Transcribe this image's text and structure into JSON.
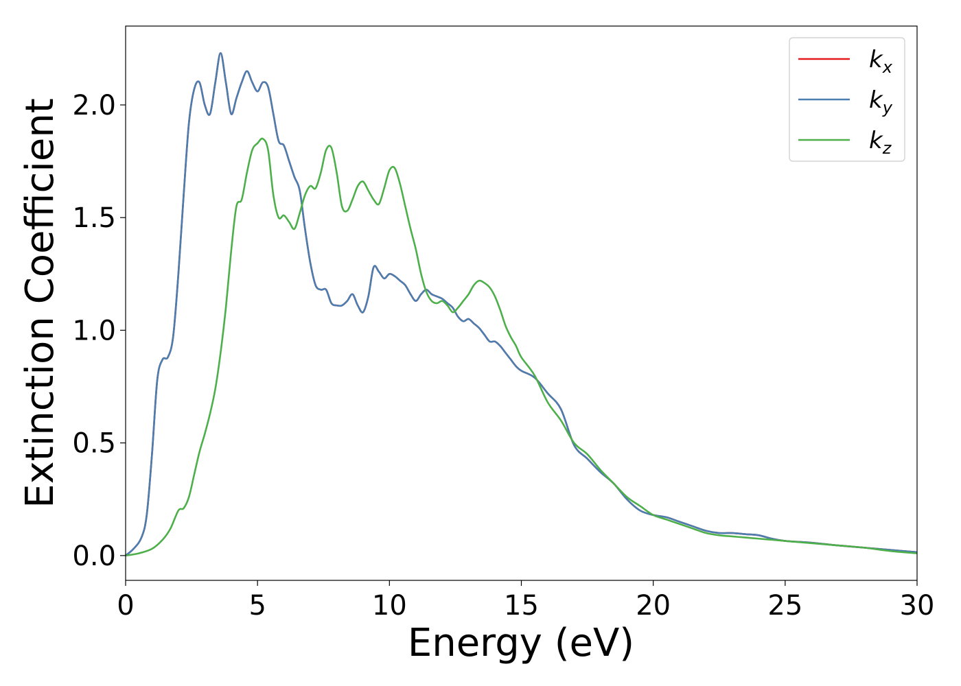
{
  "chart_data": {
    "type": "line",
    "title": "",
    "xlabel": "Energy (eV)",
    "ylabel": "Extinction Coefficient",
    "xlim": [
      0,
      30
    ],
    "ylim": [
      -0.11,
      2.35
    ],
    "xticks": [
      0,
      5,
      10,
      15,
      20,
      25,
      30
    ],
    "xtick_labels": [
      "0",
      "5",
      "10",
      "15",
      "20",
      "25",
      "30"
    ],
    "yticks": [
      0.0,
      0.5,
      1.0,
      1.5,
      2.0
    ],
    "ytick_labels": [
      "0.0",
      "0.5",
      "1.0",
      "1.5",
      "2.0"
    ],
    "grid": false,
    "legend_position": "top-right",
    "series": [
      {
        "name": "k_x",
        "legend_base": "k",
        "legend_sub": "x",
        "color": "#e41a1c",
        "x": [
          0,
          0.3,
          0.6,
          0.8,
          1.0,
          1.2,
          1.4,
          1.6,
          1.8,
          2.0,
          2.2,
          2.4,
          2.6,
          2.8,
          3.0,
          3.2,
          3.4,
          3.6,
          3.8,
          4.0,
          4.2,
          4.4,
          4.6,
          4.8,
          5.0,
          5.2,
          5.4,
          5.6,
          5.8,
          6.0,
          6.2,
          6.4,
          6.6,
          6.8,
          7.0,
          7.2,
          7.4,
          7.6,
          7.8,
          8.0,
          8.2,
          8.4,
          8.6,
          8.8,
          9.0,
          9.2,
          9.4,
          9.6,
          9.8,
          10.0,
          10.2,
          10.4,
          10.6,
          10.8,
          11.0,
          11.2,
          11.4,
          11.6,
          11.8,
          12.0,
          12.2,
          12.4,
          12.6,
          12.8,
          13.0,
          13.2,
          13.4,
          13.6,
          13.8,
          14.0,
          14.2,
          14.4,
          14.6,
          14.8,
          15.0,
          15.5,
          16.0,
          16.5,
          17.0,
          17.5,
          18.0,
          18.5,
          19.0,
          19.5,
          20.0,
          20.5,
          21.0,
          21.5,
          22.0,
          22.5,
          23.0,
          23.5,
          24.0,
          24.5,
          25.0,
          26.0,
          27.0,
          28.0,
          29.0,
          30.0
        ],
        "y": [
          0,
          0.03,
          0.08,
          0.18,
          0.45,
          0.78,
          0.87,
          0.88,
          0.97,
          1.25,
          1.6,
          1.92,
          2.07,
          2.1,
          2.0,
          1.96,
          2.1,
          2.23,
          2.1,
          1.96,
          2.03,
          2.1,
          2.15,
          2.1,
          2.06,
          2.1,
          2.08,
          1.96,
          1.84,
          1.82,
          1.75,
          1.68,
          1.62,
          1.45,
          1.3,
          1.2,
          1.18,
          1.18,
          1.12,
          1.11,
          1.11,
          1.13,
          1.16,
          1.11,
          1.08,
          1.15,
          1.28,
          1.26,
          1.23,
          1.25,
          1.24,
          1.22,
          1.2,
          1.16,
          1.13,
          1.16,
          1.18,
          1.16,
          1.15,
          1.14,
          1.12,
          1.1,
          1.06,
          1.04,
          1.05,
          1.03,
          1.01,
          0.98,
          0.95,
          0.95,
          0.93,
          0.9,
          0.87,
          0.84,
          0.82,
          0.79,
          0.72,
          0.65,
          0.49,
          0.43,
          0.37,
          0.32,
          0.25,
          0.2,
          0.18,
          0.17,
          0.15,
          0.13,
          0.11,
          0.1,
          0.1,
          0.095,
          0.09,
          0.075,
          0.065,
          0.057,
          0.045,
          0.035,
          0.025,
          0.015
        ]
      },
      {
        "name": "k_y",
        "legend_base": "k",
        "legend_sub": "y",
        "color": "#4a7eb0",
        "x": [
          0,
          0.3,
          0.6,
          0.8,
          1.0,
          1.2,
          1.4,
          1.6,
          1.8,
          2.0,
          2.2,
          2.4,
          2.6,
          2.8,
          3.0,
          3.2,
          3.4,
          3.6,
          3.8,
          4.0,
          4.2,
          4.4,
          4.6,
          4.8,
          5.0,
          5.2,
          5.4,
          5.6,
          5.8,
          6.0,
          6.2,
          6.4,
          6.6,
          6.8,
          7.0,
          7.2,
          7.4,
          7.6,
          7.8,
          8.0,
          8.2,
          8.4,
          8.6,
          8.8,
          9.0,
          9.2,
          9.4,
          9.6,
          9.8,
          10.0,
          10.2,
          10.4,
          10.6,
          10.8,
          11.0,
          11.2,
          11.4,
          11.6,
          11.8,
          12.0,
          12.2,
          12.4,
          12.6,
          12.8,
          13.0,
          13.2,
          13.4,
          13.6,
          13.8,
          14.0,
          14.2,
          14.4,
          14.6,
          14.8,
          15.0,
          15.5,
          16.0,
          16.5,
          17.0,
          17.5,
          18.0,
          18.5,
          19.0,
          19.5,
          20.0,
          20.5,
          21.0,
          21.5,
          22.0,
          22.5,
          23.0,
          23.5,
          24.0,
          24.5,
          25.0,
          26.0,
          27.0,
          28.0,
          29.0,
          30.0
        ],
        "y": [
          0,
          0.03,
          0.08,
          0.18,
          0.45,
          0.78,
          0.87,
          0.88,
          0.97,
          1.25,
          1.6,
          1.92,
          2.07,
          2.1,
          2.0,
          1.96,
          2.1,
          2.23,
          2.1,
          1.96,
          2.03,
          2.1,
          2.15,
          2.1,
          2.06,
          2.1,
          2.08,
          1.96,
          1.84,
          1.82,
          1.75,
          1.68,
          1.62,
          1.45,
          1.3,
          1.2,
          1.18,
          1.18,
          1.12,
          1.11,
          1.11,
          1.13,
          1.16,
          1.11,
          1.08,
          1.15,
          1.28,
          1.26,
          1.23,
          1.25,
          1.24,
          1.22,
          1.2,
          1.16,
          1.13,
          1.16,
          1.18,
          1.16,
          1.15,
          1.14,
          1.12,
          1.1,
          1.06,
          1.04,
          1.05,
          1.03,
          1.01,
          0.98,
          0.95,
          0.95,
          0.93,
          0.9,
          0.87,
          0.84,
          0.82,
          0.79,
          0.72,
          0.65,
          0.49,
          0.43,
          0.37,
          0.32,
          0.25,
          0.2,
          0.18,
          0.17,
          0.15,
          0.13,
          0.11,
          0.1,
          0.1,
          0.095,
          0.09,
          0.075,
          0.065,
          0.057,
          0.045,
          0.035,
          0.025,
          0.015
        ]
      },
      {
        "name": "k_z",
        "legend_base": "k",
        "legend_sub": "z",
        "color": "#4daf4a",
        "x": [
          0,
          0.5,
          1.0,
          1.4,
          1.7,
          2.0,
          2.2,
          2.4,
          2.6,
          2.8,
          3.0,
          3.2,
          3.4,
          3.6,
          3.8,
          4.0,
          4.2,
          4.4,
          4.6,
          4.8,
          5.0,
          5.2,
          5.4,
          5.6,
          5.8,
          6.0,
          6.2,
          6.4,
          6.6,
          6.8,
          7.0,
          7.2,
          7.4,
          7.6,
          7.8,
          8.0,
          8.2,
          8.4,
          8.6,
          8.8,
          9.0,
          9.2,
          9.4,
          9.6,
          9.8,
          10.0,
          10.2,
          10.4,
          10.6,
          10.8,
          11.0,
          11.2,
          11.4,
          11.6,
          11.8,
          12.0,
          12.2,
          12.4,
          12.6,
          12.8,
          13.0,
          13.2,
          13.4,
          13.6,
          13.8,
          14.0,
          14.2,
          14.4,
          14.6,
          14.8,
          15.0,
          15.5,
          16.0,
          16.5,
          17.0,
          17.5,
          18.0,
          18.5,
          19.0,
          19.5,
          20.0,
          20.5,
          21.0,
          21.5,
          22.0,
          22.5,
          23.0,
          23.5,
          24.0,
          24.5,
          25.0,
          26.0,
          27.0,
          28.0,
          29.0,
          30.0
        ],
        "y": [
          0,
          0.01,
          0.03,
          0.07,
          0.12,
          0.2,
          0.21,
          0.26,
          0.36,
          0.46,
          0.54,
          0.63,
          0.74,
          0.9,
          1.1,
          1.35,
          1.55,
          1.58,
          1.7,
          1.8,
          1.83,
          1.85,
          1.8,
          1.6,
          1.5,
          1.51,
          1.48,
          1.45,
          1.52,
          1.6,
          1.64,
          1.63,
          1.7,
          1.8,
          1.81,
          1.7,
          1.55,
          1.53,
          1.58,
          1.64,
          1.66,
          1.62,
          1.58,
          1.56,
          1.63,
          1.71,
          1.72,
          1.65,
          1.55,
          1.45,
          1.36,
          1.25,
          1.17,
          1.13,
          1.12,
          1.13,
          1.11,
          1.08,
          1.1,
          1.13,
          1.16,
          1.2,
          1.22,
          1.21,
          1.19,
          1.15,
          1.09,
          1.02,
          0.97,
          0.93,
          0.88,
          0.8,
          0.68,
          0.6,
          0.5,
          0.45,
          0.38,
          0.32,
          0.26,
          0.22,
          0.18,
          0.16,
          0.14,
          0.12,
          0.1,
          0.09,
          0.085,
          0.08,
          0.075,
          0.07,
          0.065,
          0.055,
          0.045,
          0.035,
          0.02,
          0.01
        ]
      }
    ]
  }
}
